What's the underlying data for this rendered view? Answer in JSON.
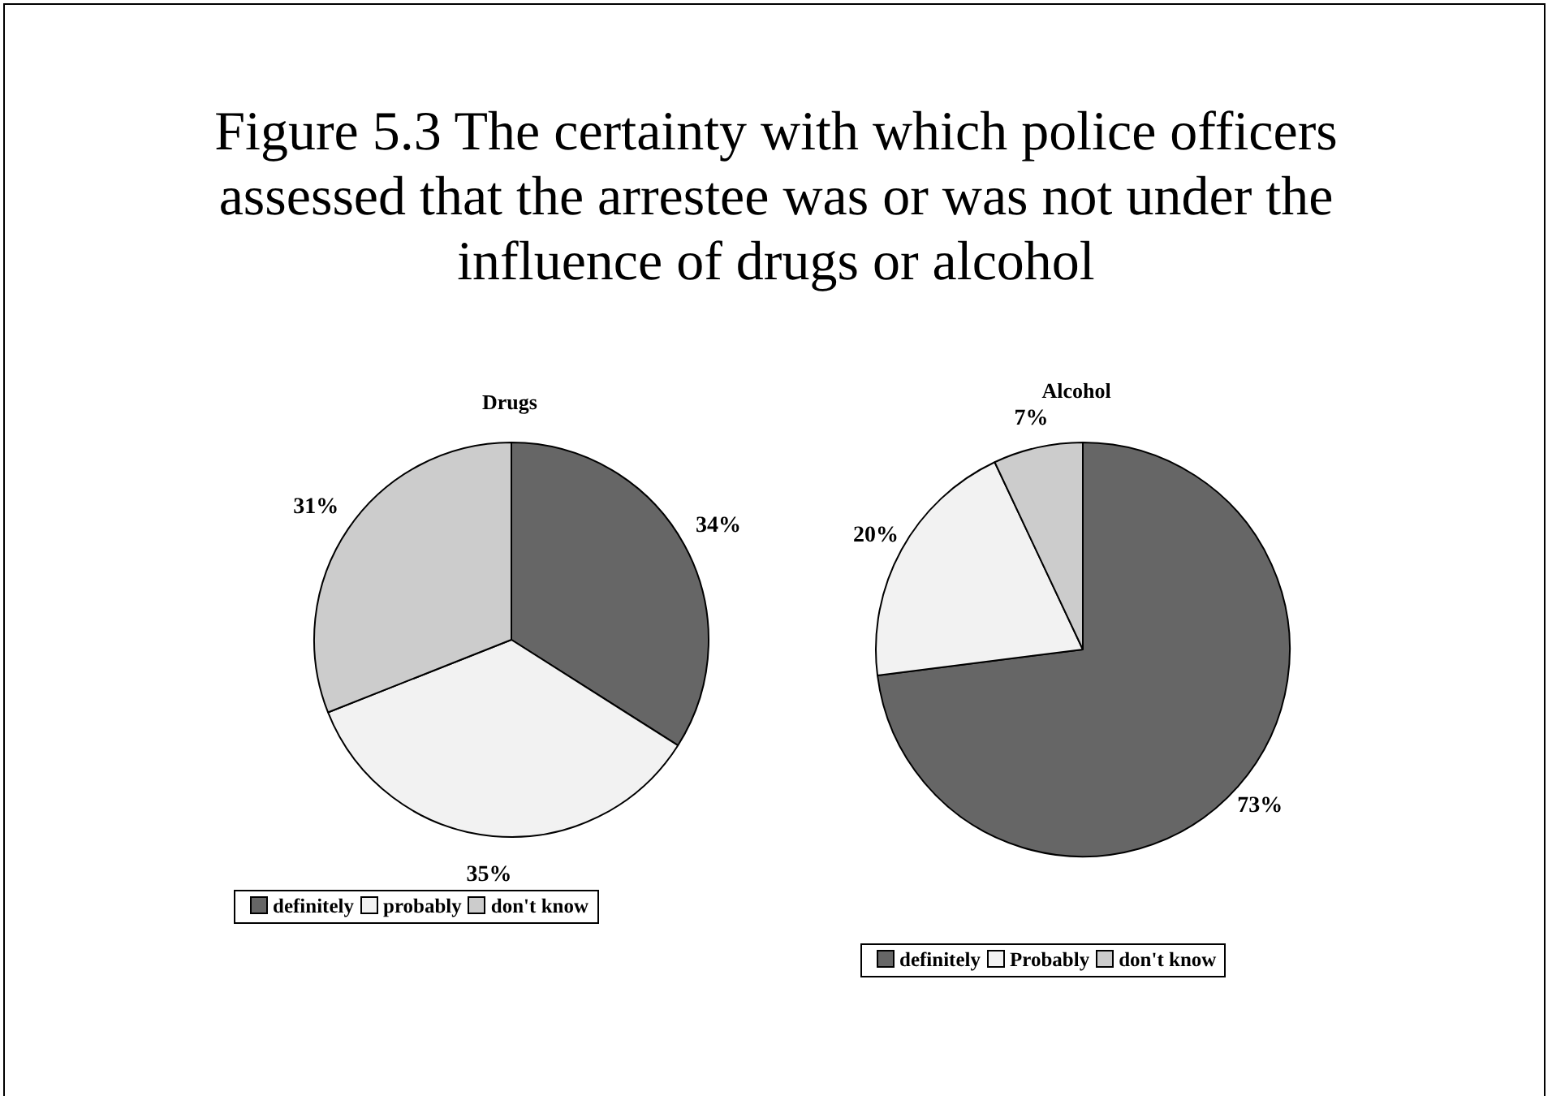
{
  "chart_data": [
    {
      "type": "pie",
      "title": "Figure 5.3  The certainty with which police officers assessed that the arrestee was or was not under the influence of drugs or alcohol",
      "subtitle": "Drugs",
      "categories": [
        "definitely",
        "probably",
        "don't know"
      ],
      "values": [
        34,
        35,
        31
      ],
      "value_labels": [
        "34%",
        "35%",
        "31%"
      ],
      "colors": [
        "#666666",
        "#f2f2f2",
        "#cccccc"
      ],
      "legend": "bottom"
    },
    {
      "type": "pie",
      "title": "Alcohol",
      "categories": [
        "definitely",
        "Probably",
        "don't know"
      ],
      "values": [
        73,
        20,
        7
      ],
      "value_labels": [
        "73%",
        "20%",
        "7%"
      ],
      "colors": [
        "#666666",
        "#f2f2f2",
        "#cccccc"
      ],
      "legend": "bottom"
    }
  ]
}
